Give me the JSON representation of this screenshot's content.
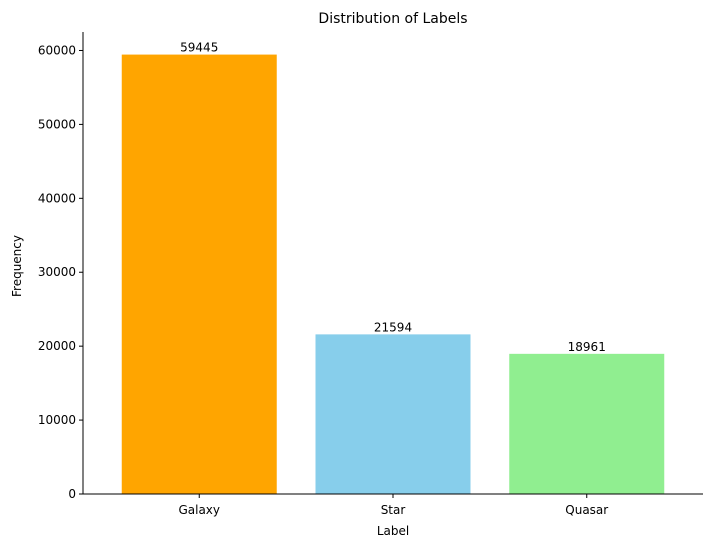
{
  "chart_data": {
    "type": "bar",
    "title": "Distribution of Labels",
    "xlabel": "Label",
    "ylabel": "Frequency",
    "categories": [
      "Galaxy",
      "Star",
      "Quasar"
    ],
    "values": [
      59445,
      21594,
      18961
    ],
    "data_labels": [
      "59445",
      "21594",
      "18961"
    ],
    "colors": [
      "#ffa500",
      "#87ceeb",
      "#90ee90"
    ],
    "ylim": [
      0,
      62500
    ],
    "yticks": [
      0,
      10000,
      20000,
      30000,
      40000,
      50000,
      60000
    ],
    "ytick_labels": [
      "0",
      "10000",
      "20000",
      "30000",
      "40000",
      "50000",
      "60000"
    ],
    "grid": false,
    "spines": [
      "left",
      "bottom"
    ]
  }
}
